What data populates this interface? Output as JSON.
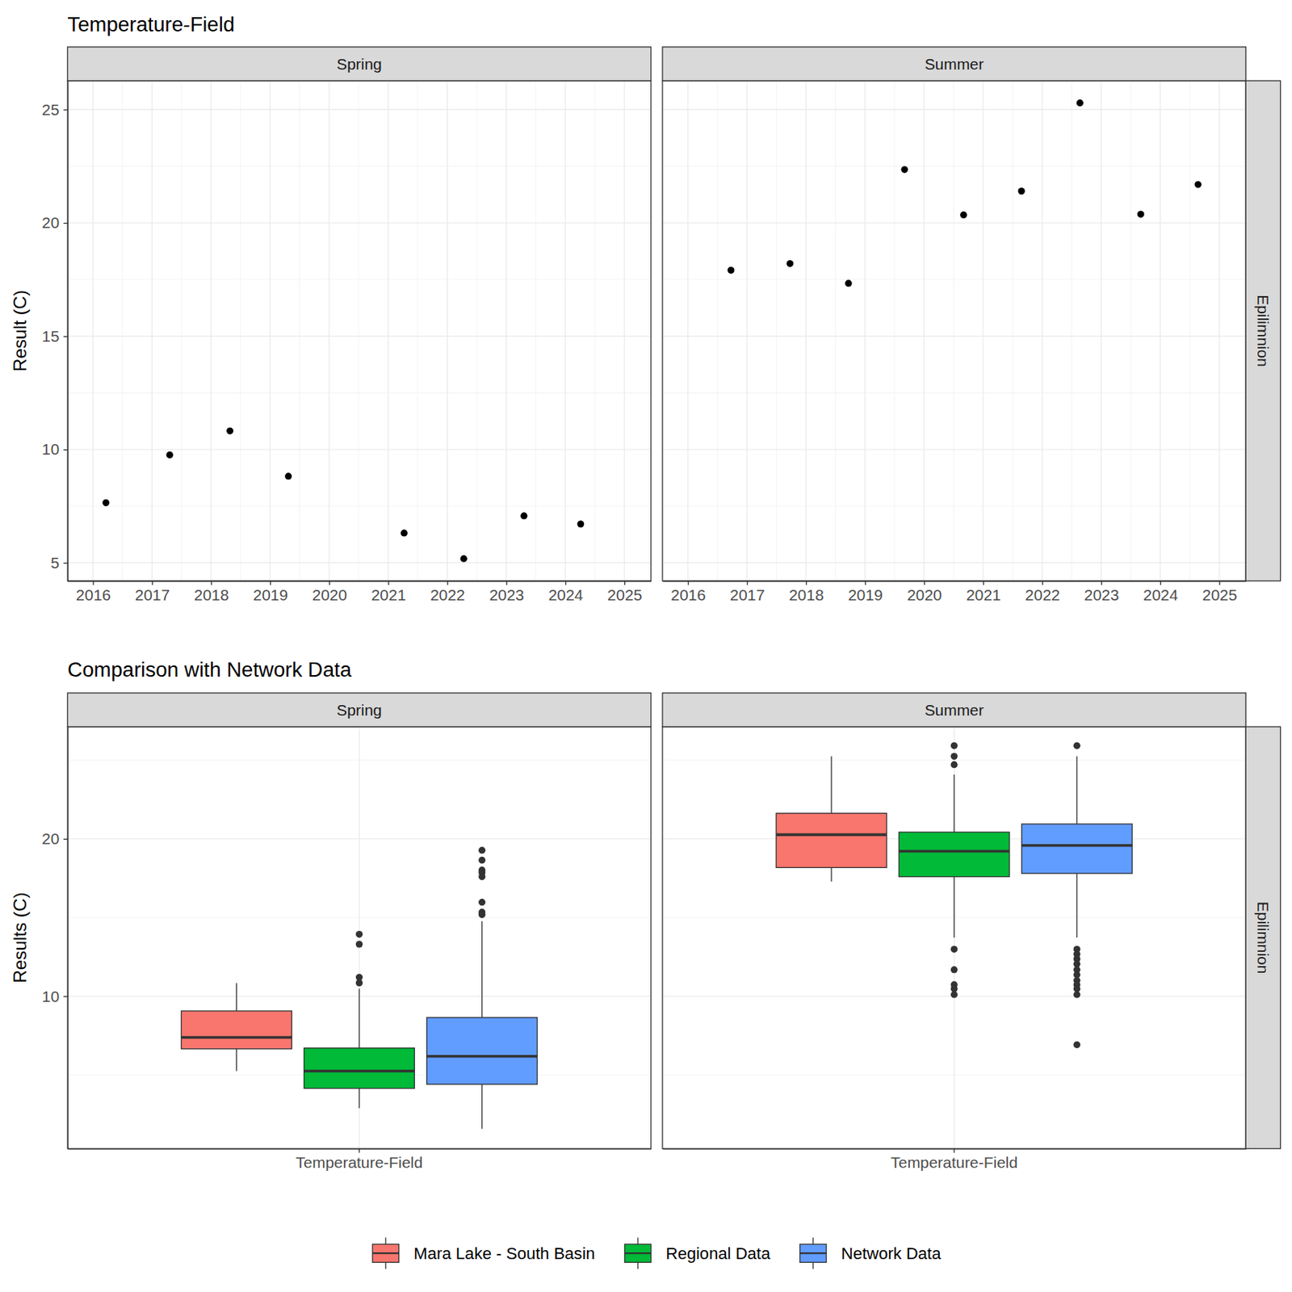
{
  "chart_data": [
    {
      "type": "scatter",
      "title": "Temperature-Field",
      "y_label": "Result (C)",
      "row_label": "Epilimnion",
      "color": "#000000",
      "marker": "circle",
      "grid": true,
      "xlim": [
        2015.57,
        2025.45
      ],
      "xticks": [
        2016,
        2017,
        2018,
        2019,
        2020,
        2021,
        2022,
        2023,
        2024,
        2025
      ],
      "ylim": [
        4.2,
        26.27
      ],
      "yticks": [
        5,
        10,
        15,
        20,
        25
      ],
      "series": [
        {
          "name": "Spring",
          "x": [
            2016.22,
            2017.3,
            2018.32,
            2019.31,
            2021.27,
            2022.28,
            2023.3,
            2024.26
          ],
          "values": [
            7.65,
            9.76,
            10.82,
            8.82,
            6.31,
            5.18,
            7.07,
            6.71
          ]
        },
        {
          "name": "Summer",
          "x": [
            2016.73,
            2017.73,
            2018.72,
            2019.67,
            2020.67,
            2021.65,
            2022.64,
            2023.67,
            2024.64
          ],
          "values": [
            17.91,
            18.2,
            17.33,
            22.35,
            20.35,
            21.4,
            25.29,
            20.38,
            21.69
          ]
        }
      ]
    },
    {
      "type": "box",
      "title": "Comparison with Network Data",
      "y_label": "Results (C)",
      "row_label": "Epilimnion",
      "categories": [
        "Temperature-Field"
      ],
      "facets": [
        "Spring",
        "Summer"
      ],
      "legend": "bottom",
      "grid": true,
      "ylim": [
        0.31,
        27.12
      ],
      "yticks": [
        10,
        20
      ],
      "series": [
        {
          "name": "Mara Lake - South Basin",
          "color": "#F8766D",
          "boxes": [
            {
              "whisker_low": 5.24,
              "q1": 6.65,
              "median": 7.38,
              "q3": 9.06,
              "whisker_high": 10.84,
              "outliers": []
            },
            {
              "whisker_low": 17.28,
              "q1": 18.17,
              "median": 20.26,
              "q3": 21.62,
              "whisker_high": 25.24,
              "outliers": []
            }
          ]
        },
        {
          "name": "Regional Data",
          "color": "#00BA38",
          "boxes": [
            {
              "whisker_low": 2.88,
              "q1": 4.14,
              "median": 5.24,
              "q3": 6.7,
              "whisker_high": 10.47,
              "outliers": [
                13.93,
                13.3,
                11.2,
                10.84
              ]
            },
            {
              "whisker_low": 13.72,
              "q1": 17.59,
              "median": 19.21,
              "q3": 20.42,
              "whisker_high": 24.08,
              "outliers": [
                25.92,
                25.24,
                24.71,
                12.98,
                11.68,
                10.73,
                10.47,
                10.1
              ]
            }
          ]
        },
        {
          "name": "Network Data",
          "color": "#619CFF",
          "boxes": [
            {
              "whisker_low": 1.57,
              "q1": 4.4,
              "median": 6.18,
              "q3": 8.64,
              "whisker_high": 14.76,
              "outliers": [
                19.27,
                18.64,
                18.01,
                17.85,
                17.59,
                15.97,
                15.34,
                15.18
              ]
            },
            {
              "whisker_low": 13.72,
              "q1": 17.8,
              "median": 19.58,
              "q3": 20.94,
              "whisker_high": 25.24,
              "outliers": [
                25.92,
                12.98,
                12.67,
                12.36,
                12.04,
                11.68,
                11.36,
                11.0,
                10.73,
                10.47,
                10.1,
                6.91
              ]
            }
          ]
        }
      ]
    }
  ]
}
